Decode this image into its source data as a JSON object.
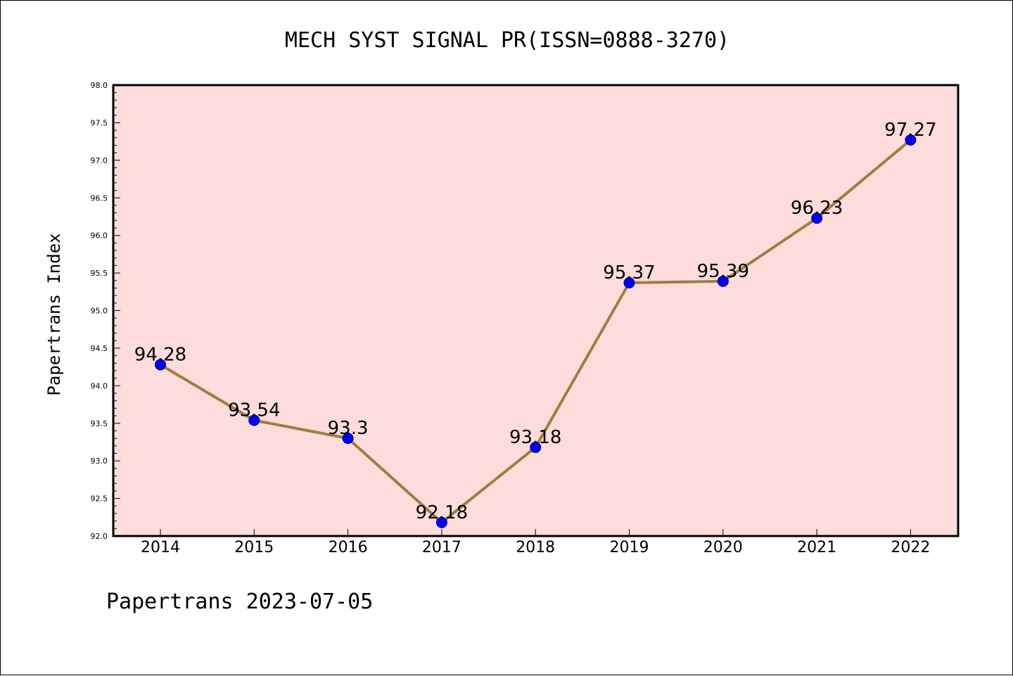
{
  "chart_data": {
    "type": "line",
    "title": "MECH SYST SIGNAL PR(ISSN=0888-3270)",
    "xlabel": "",
    "ylabel": "Papertrans Index",
    "footer": "Papertrans 2023-07-05",
    "categories": [
      "2014",
      "2015",
      "2016",
      "2017",
      "2018",
      "2019",
      "2020",
      "2021",
      "2022"
    ],
    "series": [
      {
        "values": [
          94.28,
          93.54,
          93.3,
          92.18,
          93.18,
          95.37,
          95.39,
          96.23,
          97.27
        ],
        "labels": [
          "94.28",
          "93.54",
          "93.3",
          "92.18",
          "93.18",
          "95.37",
          "95.39",
          "96.23",
          "97.27"
        ],
        "line_color": "#9a8040",
        "marker_color": "#0000ff"
      }
    ],
    "ylim": [
      92.0,
      98.0
    ],
    "yticks": [
      92.0,
      92.5,
      93.0,
      93.5,
      94.0,
      94.5,
      95.0,
      95.5,
      96.0,
      96.5,
      97.0,
      97.5,
      98.0
    ],
    "ytick_labels": [
      "92.0",
      "92.5",
      "93.0",
      "93.5",
      "94.0",
      "94.5",
      "95.0",
      "95.5",
      "96.0",
      "96.5",
      "97.0",
      "97.5",
      "98.0"
    ],
    "grid": false,
    "plot_background": "#ffdcdc"
  }
}
